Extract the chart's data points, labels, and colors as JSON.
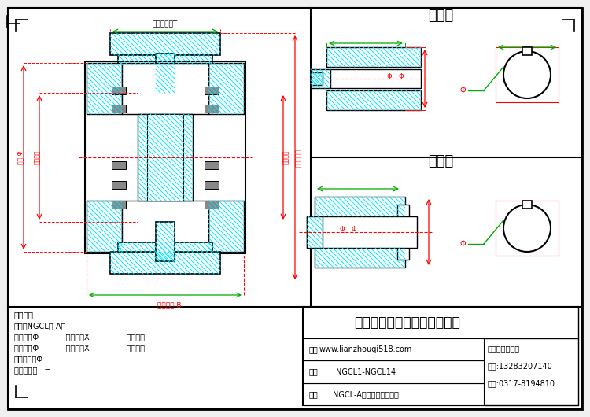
{
  "bg_color": "#f0f0f0",
  "inner_bg": "#ffffff",
  "title_company": "泊头市通佳机械设备有限公司",
  "name_label": "名称",
  "name_value": "NGCL-A型鼓形齿式联轴器",
  "apply_label": "适用",
  "apply_value": "NGCL1-NGCL14",
  "website_label": "网址",
  "website_value": "www.lianzhouqi518.com",
  "contact_label": "联系人：张经理",
  "phone_label": "手机:13283207140",
  "phone2_label": "电话:0317-8194810",
  "text_note": "文字标注",
  "model_label": "型号：NGCL型-A型-",
  "active_label": "主动端：Φ",
  "active_hole": "（孔径）X",
  "active_len": "（孔长）",
  "passive_label": "从动端：Φ",
  "passive_hole": "（孔径）X",
  "passive_len": "（孔长）",
  "outer_diam": "制动轮外径Φ",
  "brake_width": "制动轮宽度 T=",
  "dim_T_label": "制动轮宽度T",
  "dim_B_label": "齿套宽度 B",
  "dim_outer_label": "外径 Φ",
  "dim_pitch_label": "节圆外径",
  "dim_inner_label": "内孔外径",
  "dim_brake_outer_label": "制动轮外径",
  "main_title_top": "主动端",
  "passive_title": "从动端",
  "hatch_color": "#00ffff",
  "outline_color": "#000000",
  "dim_color": "#ff0000",
  "dim_green_color": "#00aa00",
  "centerline_color": "#ff0000"
}
